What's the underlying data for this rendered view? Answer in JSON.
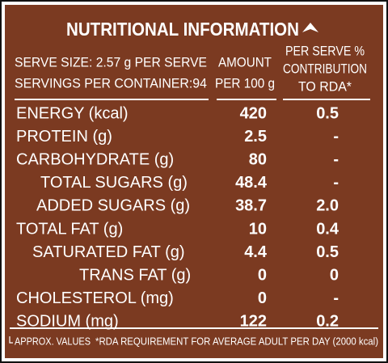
{
  "title": "NUTRITIONAL INFORMATION",
  "header": {
    "serve_size": "SERVE SIZE: 2.57 g PER SERVE",
    "servings": "SERVINGS PER CONTAINER:94",
    "amount": [
      "AMOUNT",
      "PER 100 g"
    ],
    "rda": [
      "PER SERVE %",
      "CONTRIBUTION",
      "TO RDA*"
    ]
  },
  "table": {
    "rows": [
      [
        "ENERGY (kcal)",
        "420",
        "0.5"
      ],
      [
        "PROTEIN (g)",
        "2.5",
        "-"
      ],
      [
        "CARBOHYDRATE (g)",
        "80",
        "-"
      ],
      [
        "TOTAL SUGARS (g)",
        "48.4",
        "-"
      ],
      [
        "ADDED SUGARS (g)",
        "38.7",
        "2.0"
      ],
      [
        "TOTAL FAT (g)",
        "10",
        "0.4"
      ],
      [
        "SATURATED FAT (g)",
        "4.4",
        "0.5"
      ],
      [
        "TRANS FAT (g)",
        "0",
        "0"
      ],
      [
        "CHOLESTEROL (mg)",
        "0",
        "-"
      ],
      [
        "SODIUM (mg)",
        "122",
        "0.2"
      ]
    ]
  },
  "footer": [
    "APPROX. VALUES",
    "*RDA REQUIREMENT FOR AVERAGE ADULT PER DAY (2000 kcal)"
  ]
}
